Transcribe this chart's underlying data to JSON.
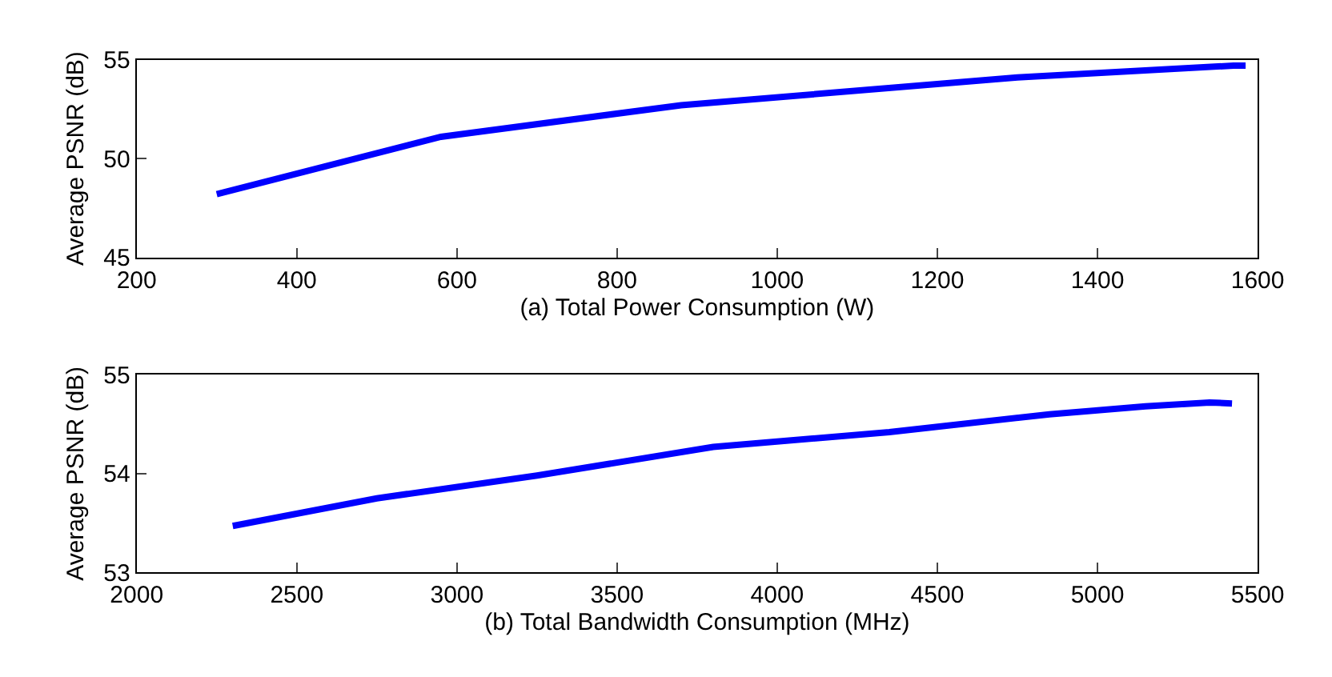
{
  "chart_data": [
    {
      "type": "line",
      "xlabel": "(a) Total Power Consumption (W)",
      "ylabel": "Average PSNR (dB)",
      "xlim": [
        200,
        1600
      ],
      "xticks": [
        200,
        400,
        600,
        800,
        1000,
        1200,
        1400,
        1600
      ],
      "ylim": [
        45,
        55
      ],
      "yticks": [
        45,
        50,
        55
      ],
      "series": [
        {
          "color": "#0000ff",
          "x": [
            300,
            580,
            880,
            1300,
            1570,
            1585
          ],
          "values": [
            48.2,
            51.1,
            52.7,
            54.1,
            54.7,
            54.7
          ]
        }
      ]
    },
    {
      "type": "line",
      "xlabel": "(b) Total Bandwidth Consumption (MHz)",
      "ylabel": "Average PSNR (dB)",
      "xlim": [
        2000,
        5500
      ],
      "xticks": [
        2000,
        2500,
        3000,
        3500,
        4000,
        4500,
        5000,
        5500
      ],
      "ylim": [
        53,
        55
      ],
      "yticks": [
        53,
        54,
        55
      ],
      "series": [
        {
          "color": "#0000ff",
          "x": [
            2300,
            2750,
            3250,
            3800,
            4350,
            4850,
            5150,
            5350,
            5420
          ],
          "values": [
            53.47,
            53.75,
            53.98,
            54.27,
            54.42,
            54.6,
            54.68,
            54.72,
            54.71
          ]
        }
      ]
    }
  ]
}
